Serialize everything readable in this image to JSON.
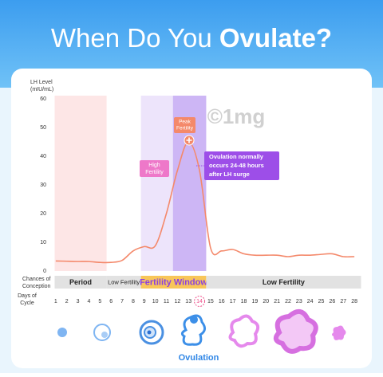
{
  "header": {
    "title_light": "When Do You",
    "title_bold": "Ovulate?"
  },
  "chart_data": {
    "type": "line",
    "y_label": [
      "LH Level",
      "(mIU/mL)"
    ],
    "x_label": [
      "Days of",
      "Cycle"
    ],
    "conception_label": [
      "Chances of",
      "Conception"
    ],
    "x": [
      1,
      2,
      3,
      4,
      5,
      6,
      7,
      8,
      9,
      10,
      11,
      12,
      13,
      14,
      15,
      16,
      17,
      18,
      19,
      20,
      21,
      22,
      23,
      24,
      25,
      26,
      27,
      28
    ],
    "xticks": [
      1,
      2,
      3,
      4,
      5,
      6,
      7,
      8,
      9,
      10,
      11,
      12,
      13,
      14,
      15,
      16,
      17,
      18,
      19,
      20,
      21,
      22,
      23,
      24,
      25,
      26,
      27,
      28
    ],
    "xlim": [
      0,
      29
    ],
    "highlight_tick": 14,
    "series": [
      {
        "color": "#f4896b",
        "values": [
          3.5,
          3.4,
          3.3,
          3.3,
          3.0,
          3.0,
          3.7,
          7,
          8.5,
          8.8,
          20,
          35,
          45,
          35,
          8,
          7,
          7.5,
          6,
          5.5,
          5.5,
          5.5,
          5.0,
          5.5,
          5.5,
          5.8,
          6,
          5,
          5
        ]
      }
    ],
    "ylim": [
      0,
      60
    ],
    "yticks": [
      0,
      10,
      20,
      30,
      40,
      50,
      60
    ],
    "conception": [
      {
        "label": "Period",
        "start": 0.9,
        "end": 5.6,
        "color": "#e2e2e2",
        "band": "#fde6e6"
      },
      {
        "label": "Low Fertility",
        "start": 5.6,
        "end": 8.7,
        "color": "#e2e2e2"
      },
      {
        "label": "Fertility Window",
        "start": 8.7,
        "end": 14.6,
        "color": "#f8c65a",
        "band": "#ede4fb"
      },
      {
        "label": "Low Fertility",
        "start": 14.6,
        "end": 28.6,
        "color": "#e2e2e2"
      }
    ],
    "peak_window": [
      11.6,
      14.6
    ],
    "annotations": {
      "peak": [
        "Peak",
        "Fertility"
      ],
      "high": [
        "High",
        "Fertility"
      ],
      "ovulation": [
        "Ovulation normally",
        "occurs 24-48 hours",
        "after LH surge"
      ]
    },
    "watermark": "©1mg",
    "ovulation_label": "Ovulation"
  }
}
